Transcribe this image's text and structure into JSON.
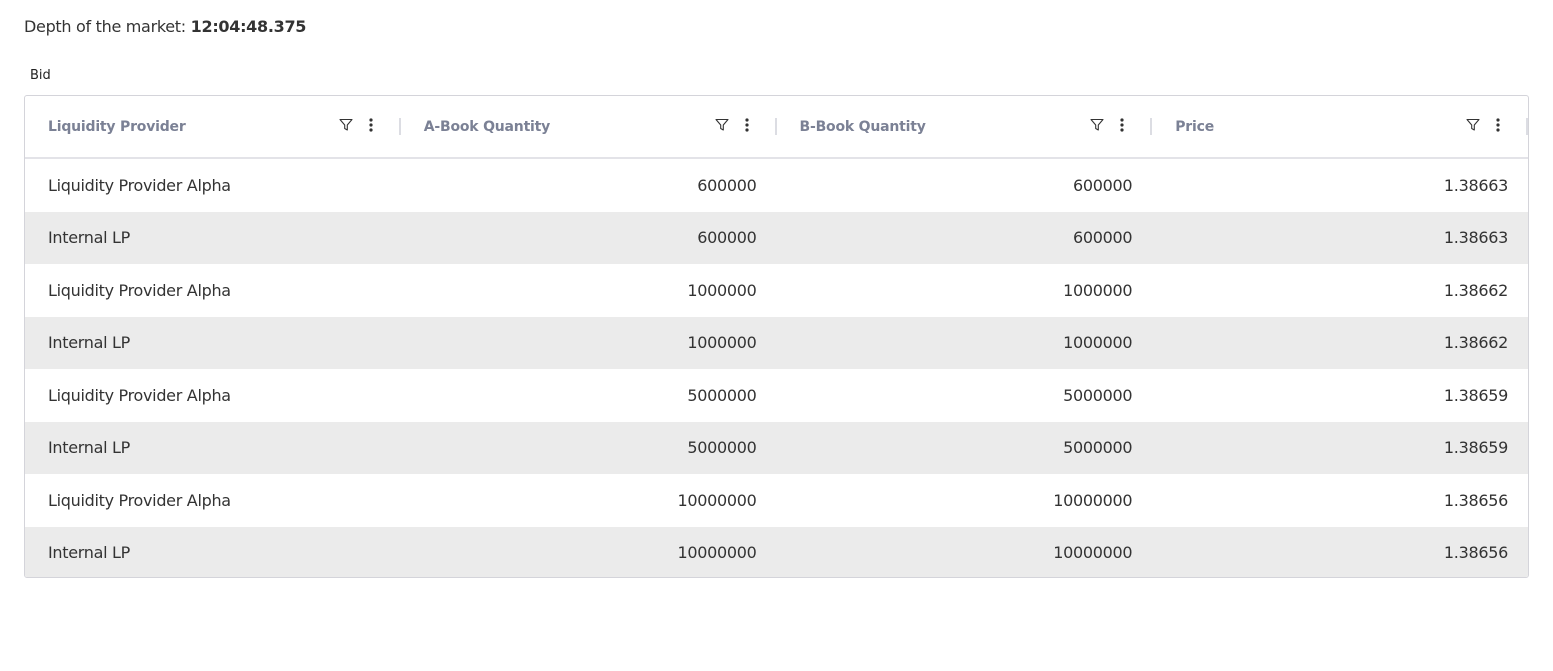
{
  "header": {
    "label": "Depth of the market:",
    "timestamp": "12:04:48.375"
  },
  "section_label": "Bid",
  "table": {
    "columns": [
      {
        "label": "Liquidity Provider"
      },
      {
        "label": "A-Book Quantity"
      },
      {
        "label": "B-Book Quantity"
      },
      {
        "label": "Price"
      }
    ],
    "rows": [
      [
        "Liquidity Provider Alpha",
        "600000",
        "600000",
        "1.38663"
      ],
      [
        "Internal LP",
        "600000",
        "600000",
        "1.38663"
      ],
      [
        "Liquidity Provider Alpha",
        "1000000",
        "1000000",
        "1.38662"
      ],
      [
        "Internal LP",
        "1000000",
        "1000000",
        "1.38662"
      ],
      [
        "Liquidity Provider Alpha",
        "5000000",
        "5000000",
        "1.38659"
      ],
      [
        "Internal LP",
        "5000000",
        "5000000",
        "1.38659"
      ],
      [
        "Liquidity Provider Alpha",
        "10000000",
        "10000000",
        "1.38656"
      ],
      [
        "Internal LP",
        "10000000",
        "10000000",
        "1.38656"
      ]
    ]
  },
  "colors": {
    "header_text": "#7b8195",
    "alt_row": "#ebebeb",
    "border": "#d4d4da"
  },
  "icons": {
    "filter": "filter-icon",
    "menu": "kebab-menu-icon"
  }
}
